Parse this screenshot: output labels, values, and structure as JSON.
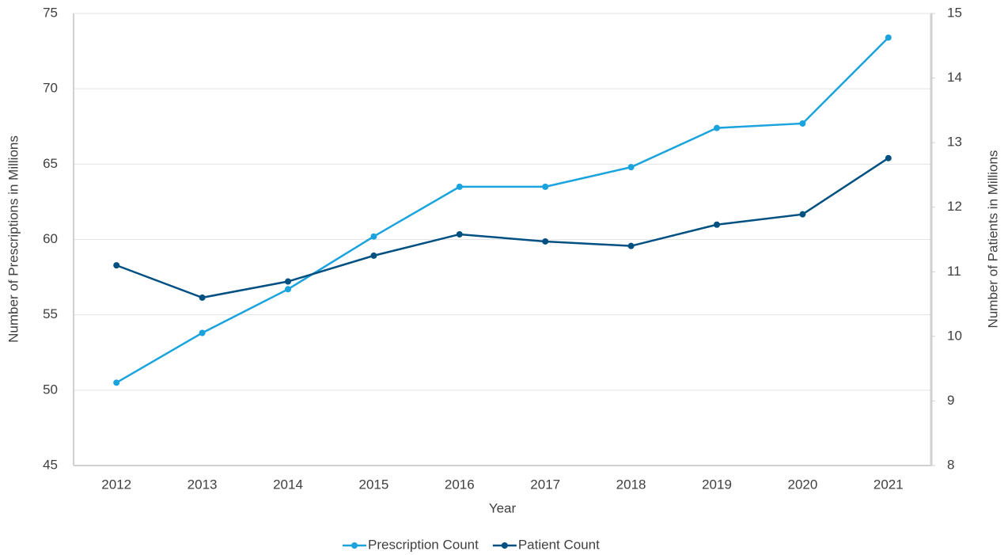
{
  "chart_data": {
    "type": "line",
    "xlabel": "Year",
    "ylabel": "Number of Prescriptions in Millions",
    "y2label": "Number of Patients in Millions",
    "categories": [
      "2012",
      "2013",
      "2014",
      "2015",
      "2016",
      "2017",
      "2018",
      "2019",
      "2020",
      "2021"
    ],
    "series": [
      {
        "name": "Prescription Count",
        "color": "#1aa3dd",
        "values": [
          50.5,
          53.8,
          56.7,
          60.2,
          63.5,
          63.5,
          64.8,
          67.4,
          67.7,
          73.4
        ]
      },
      {
        "name": "Patient Count",
        "color": "#005082",
        "axis": "y2",
        "values": [
          11.1,
          10.6,
          10.85,
          11.25,
          11.58,
          11.47,
          11.4,
          11.73,
          11.89,
          12.76
        ]
      }
    ],
    "ylim": [
      45,
      75
    ],
    "yticks": [
      45,
      50,
      55,
      60,
      65,
      70,
      75
    ],
    "y2lim": [
      8,
      15
    ],
    "y2ticks": [
      8,
      9,
      10,
      11,
      12,
      13,
      14,
      15
    ],
    "grid": true,
    "legend": "bottom"
  }
}
